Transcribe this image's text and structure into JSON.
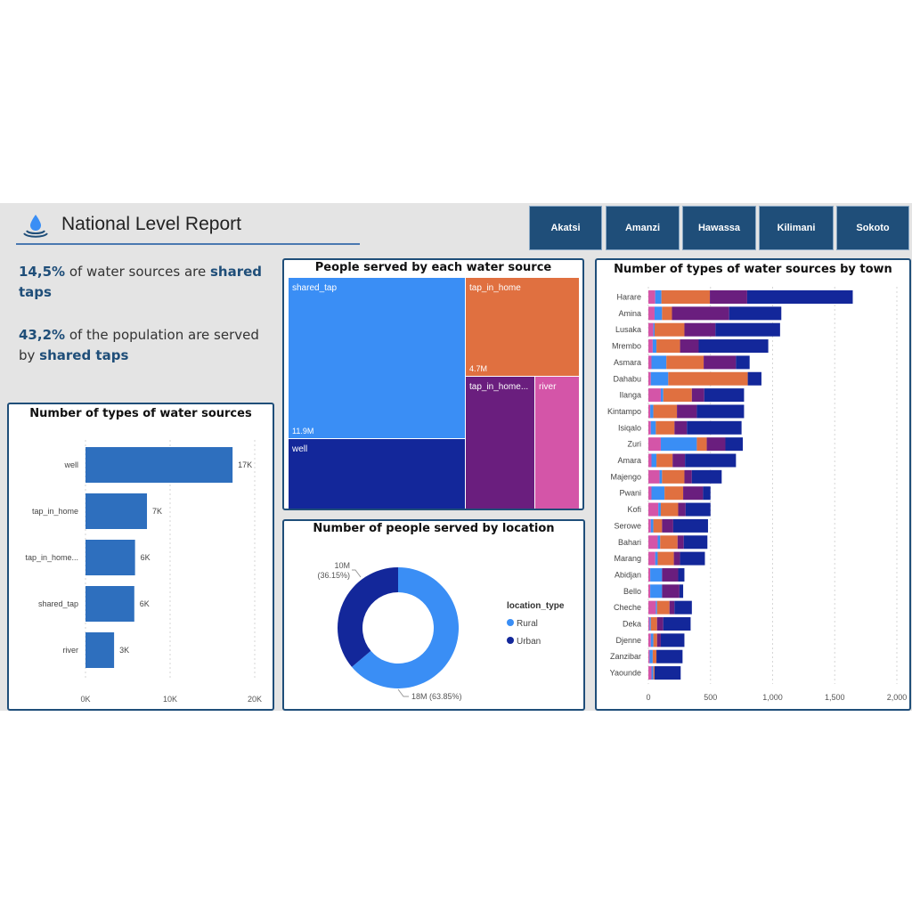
{
  "header": {
    "title": "National Level Report",
    "logo_icon": "water-drop-icon"
  },
  "nav": {
    "buttons": [
      "Akatsi",
      "Amanzi",
      "Hawassa",
      "Kilimani",
      "Sokoto"
    ]
  },
  "kpi": {
    "line1": {
      "pct": "14,5%",
      "mid": " of water sources are ",
      "bold": "shared taps"
    },
    "line2": {
      "pct": "43,2%",
      "mid": " of the population are served by ",
      "bold": "shared taps"
    }
  },
  "colors": {
    "primary": "#1f4e79",
    "bar": "#2e6fbe",
    "shared_tap": "#3a8ef5",
    "tap_in_home": "#e07040",
    "tap_in_home_broken": "#6a1e7e",
    "river": "#d455a8",
    "well": "#13279a",
    "rural": "#3a8ef5",
    "urban": "#13279a"
  },
  "chart_data": [
    {
      "type": "bar",
      "title": "Number of types of water sources",
      "categories": [
        "well",
        "tap_in_home",
        "tap_in_home...",
        "shared_tap",
        "river"
      ],
      "values": [
        17383,
        7265,
        5856,
        5767,
        3379
      ],
      "data_labels": [
        "17K",
        "7K",
        "6K",
        "6K",
        "3K"
      ],
      "xticks": [
        "0K",
        "10K",
        "20K"
      ],
      "xlim": [
        0,
        20000
      ]
    },
    {
      "type": "treemap",
      "title": "People served by each water source",
      "items": [
        {
          "name": "shared_tap",
          "label": "shared_tap",
          "value": "11.9M"
        },
        {
          "name": "tap_in_home",
          "label": "tap_in_home",
          "value": "4.7M"
        },
        {
          "name": "well",
          "label": "well",
          "value": "4.8M"
        },
        {
          "name": "tap_in_home_broken",
          "label": "tap_in_home...",
          "value": "3.8M"
        },
        {
          "name": "river",
          "label": "river",
          "value": "2.4M"
        }
      ]
    },
    {
      "type": "pie",
      "title": "Number of people served by location",
      "legend_title": "location_type",
      "slices": [
        {
          "name": "Rural",
          "value": 18,
          "label": "18M (63.85%)",
          "percent": 63.85
        },
        {
          "name": "Urban",
          "value": 10,
          "label": "10M",
          "label2": "(36.15%)",
          "percent": 36.15
        }
      ]
    },
    {
      "type": "bar",
      "stacked": true,
      "title": "Number of types of water sources by town",
      "categories": [
        "Harare",
        "Amina",
        "Lusaka",
        "Mrembo",
        "Asmara",
        "Dahabu",
        "Ilanga",
        "Kintampo",
        "Isiqalo",
        "Zuri",
        "Amara",
        "Majengo",
        "Pwani",
        "Kofi",
        "Serowe",
        "Bahari",
        "Marang",
        "Abidjan",
        "Bello",
        "Cheche",
        "Deka",
        "Djenne",
        "Zanzibar",
        "Yaounde"
      ],
      "series": [
        {
          "key": "river",
          "values": [
            55,
            50,
            40,
            35,
            25,
            20,
            100,
            15,
            20,
            100,
            25,
            90,
            25,
            80,
            20,
            75,
            55,
            15,
            15,
            60,
            10,
            20,
            10,
            25
          ]
        },
        {
          "key": "shared_tap",
          "values": [
            50,
            60,
            10,
            30,
            120,
            140,
            20,
            25,
            40,
            290,
            40,
            20,
            105,
            20,
            20,
            20,
            20,
            95,
            95,
            10,
            10,
            20,
            25,
            15
          ]
        },
        {
          "key": "tap_in_home",
          "values": [
            390,
            80,
            240,
            190,
            300,
            640,
            230,
            190,
            150,
            80,
            130,
            180,
            150,
            140,
            70,
            140,
            130,
            0,
            0,
            100,
            50,
            30,
            30,
            10
          ]
        },
        {
          "key": "tap_in_home_broken",
          "values": [
            300,
            460,
            250,
            150,
            260,
            0,
            100,
            160,
            100,
            150,
            100,
            60,
            160,
            60,
            90,
            50,
            50,
            130,
            140,
            40,
            50,
            30,
            0,
            0
          ]
        },
        {
          "key": "well",
          "values": [
            850,
            420,
            520,
            560,
            110,
            110,
            320,
            380,
            440,
            140,
            410,
            240,
            60,
            200,
            280,
            190,
            200,
            50,
            30,
            140,
            220,
            190,
            210,
            210
          ]
        }
      ],
      "xticks": [
        "0",
        "500",
        "1,000",
        "1,500",
        "2,000"
      ],
      "xlim": [
        0,
        2000
      ]
    }
  ]
}
